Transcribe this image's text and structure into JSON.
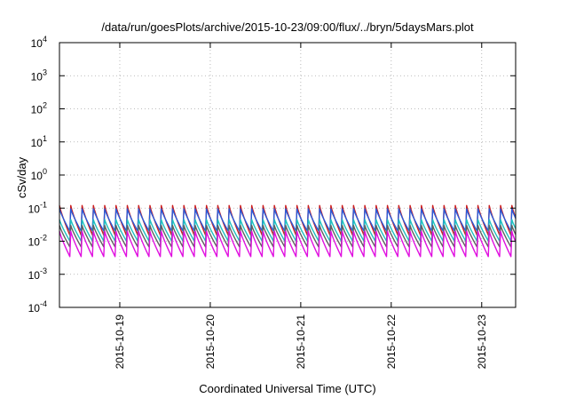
{
  "chart_data": {
    "type": "line",
    "title": "/data/run/goesPlots/archive/2015-10-23/09:00/flux/../bryn/5daysMars.plot",
    "xlabel": "Coordinated Universal Time (UTC)",
    "ylabel": "cSv/day",
    "yscale": "log",
    "ylim": [
      0.0001,
      10000
    ],
    "xlim": [
      "2015-10-18 08:00",
      "2015-10-23 09:00"
    ],
    "grid": true,
    "y_ticks": [
      {
        "base": "10",
        "exp": "-4",
        "value": 0.0001
      },
      {
        "base": "10",
        "exp": "-3",
        "value": 0.001
      },
      {
        "base": "10",
        "exp": "-2",
        "value": 0.01
      },
      {
        "base": "10",
        "exp": "-1",
        "value": 0.1
      },
      {
        "base": "10",
        "exp": "0",
        "value": 1
      },
      {
        "base": "10",
        "exp": "1",
        "value": 10
      },
      {
        "base": "10",
        "exp": "2",
        "value": 100
      },
      {
        "base": "10",
        "exp": "3",
        "value": 1000
      },
      {
        "base": "10",
        "exp": "4",
        "value": 10000
      }
    ],
    "x_ticks": [
      {
        "label": "2015-10-19",
        "value": "2015-10-19 00:00"
      },
      {
        "label": "2015-10-20",
        "value": "2015-10-20 00:00"
      },
      {
        "label": "2015-10-21",
        "value": "2015-10-21 00:00"
      },
      {
        "label": "2015-10-22",
        "value": "2015-10-22 00:00"
      },
      {
        "label": "2015-10-23",
        "value": "2015-10-23 00:00"
      }
    ],
    "cycle_hours": 3,
    "series": [
      {
        "color": "#cc1e1e",
        "peak": 0.12,
        "trough": 0.013
      },
      {
        "color": "#2a5ad8",
        "peak": 0.095,
        "trough": 0.018
      },
      {
        "color": "#20c0c0",
        "peak": 0.045,
        "trough": 0.009
      },
      {
        "color": "#606060",
        "peak": 0.03,
        "trough": 0.006
      },
      {
        "color": "#e010e0",
        "peak": 0.02,
        "trough": 0.003
      }
    ]
  }
}
